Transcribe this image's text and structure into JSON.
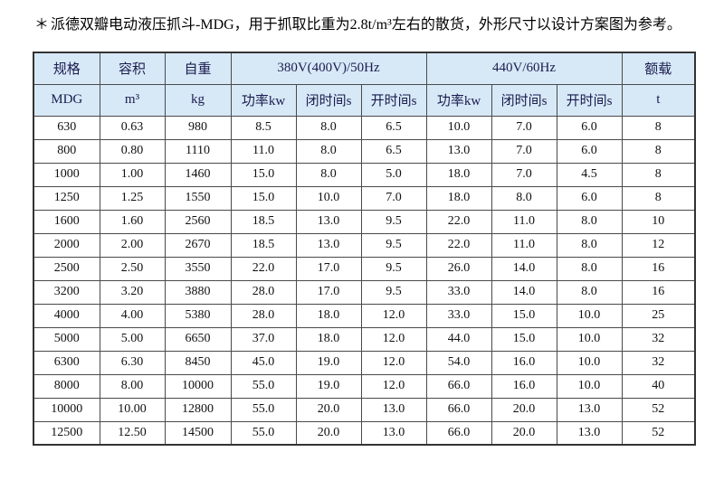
{
  "note": {
    "marker": "＊",
    "text": "派德双瓣电动液压抓斗-MDG，用于抓取比重为2.8t/m³左右的散货，外形尺寸以设计方案图为参考。"
  },
  "colors": {
    "header_bg": "#d7e9f7",
    "header_text": "#1b1b4e",
    "grid_border": "#4a4a4a",
    "body_text": "#111111"
  },
  "table": {
    "header_row1": {
      "spec": "规格",
      "volume": "容积",
      "weight": "自重",
      "hz50": "380V(400V)/50Hz",
      "hz60": "440V/60Hz",
      "rated": "额载"
    },
    "header_row2": {
      "spec": "MDG",
      "volume": "m³",
      "weight": "kg",
      "power50": "功率kw",
      "close50": "闭时间s",
      "open50": "开时间s",
      "power60": "功率kw",
      "close60": "闭时间s",
      "open60": "开时间s",
      "rated": "t"
    },
    "rows": [
      [
        "630",
        "0.63",
        "980",
        "8.5",
        "8.0",
        "6.5",
        "10.0",
        "7.0",
        "6.0",
        "8"
      ],
      [
        "800",
        "0.80",
        "1110",
        "11.0",
        "8.0",
        "6.5",
        "13.0",
        "7.0",
        "6.0",
        "8"
      ],
      [
        "1000",
        "1.00",
        "1460",
        "15.0",
        "8.0",
        "5.0",
        "18.0",
        "7.0",
        "4.5",
        "8"
      ],
      [
        "1250",
        "1.25",
        "1550",
        "15.0",
        "10.0",
        "7.0",
        "18.0",
        "8.0",
        "6.0",
        "8"
      ],
      [
        "1600",
        "1.60",
        "2560",
        "18.5",
        "13.0",
        "9.5",
        "22.0",
        "11.0",
        "8.0",
        "10"
      ],
      [
        "2000",
        "2.00",
        "2670",
        "18.5",
        "13.0",
        "9.5",
        "22.0",
        "11.0",
        "8.0",
        "12"
      ],
      [
        "2500",
        "2.50",
        "3550",
        "22.0",
        "17.0",
        "9.5",
        "26.0",
        "14.0",
        "8.0",
        "16"
      ],
      [
        "3200",
        "3.20",
        "3880",
        "28.0",
        "17.0",
        "9.5",
        "33.0",
        "14.0",
        "8.0",
        "16"
      ],
      [
        "4000",
        "4.00",
        "5380",
        "28.0",
        "18.0",
        "12.0",
        "33.0",
        "15.0",
        "10.0",
        "25"
      ],
      [
        "5000",
        "5.00",
        "6650",
        "37.0",
        "18.0",
        "12.0",
        "44.0",
        "15.0",
        "10.0",
        "32"
      ],
      [
        "6300",
        "6.30",
        "8450",
        "45.0",
        "19.0",
        "12.0",
        "54.0",
        "16.0",
        "10.0",
        "32"
      ],
      [
        "8000",
        "8.00",
        "10000",
        "55.0",
        "19.0",
        "12.0",
        "66.0",
        "16.0",
        "10.0",
        "40"
      ],
      [
        "10000",
        "10.00",
        "12800",
        "55.0",
        "20.0",
        "13.0",
        "66.0",
        "20.0",
        "13.0",
        "52"
      ],
      [
        "12500",
        "12.50",
        "14500",
        "55.0",
        "20.0",
        "13.0",
        "66.0",
        "20.0",
        "13.0",
        "52"
      ]
    ]
  }
}
